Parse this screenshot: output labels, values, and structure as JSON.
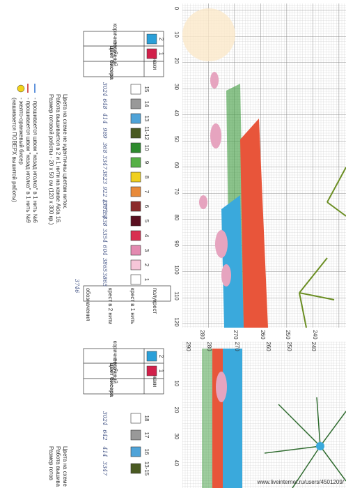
{
  "chart1": {
    "axis_top": [
      "0",
      "10",
      "20",
      "30",
      "40",
      "50",
      "60",
      "70",
      "80",
      "90",
      "100",
      "110",
      "120"
    ],
    "axis_side": [
      "280",
      "270",
      "260",
      "250",
      "240"
    ]
  },
  "chart2": {
    "axis_top": [
      "10",
      "20",
      "30",
      "40"
    ],
    "axis_side": [
      "290",
      "280",
      "270",
      "260",
      "250",
      "240"
    ]
  },
  "legend1": {
    "bead_title": "цвет бисера",
    "sign_header": "знаки",
    "beads": [
      {
        "num": "1",
        "name": "песочный"
      },
      {
        "num": "2",
        "name": "коричневый"
      }
    ],
    "threads": [
      {
        "num": "15",
        "code": "3024"
      },
      {
        "num": "14",
        "code": "648"
      },
      {
        "num": "13",
        "code": "414"
      },
      {
        "num": "11-12",
        "code": "989"
      },
      {
        "num": "10",
        "code": "368"
      },
      {
        "num": "9",
        "code": "3347"
      },
      {
        "num": "8",
        "code": "3823"
      },
      {
        "num": "7",
        "code": "922"
      },
      {
        "num": "6",
        "code": "3773"
      },
      {
        "num": "5",
        "code": "838"
      },
      {
        "num": "4",
        "code": "3354"
      },
      {
        "num": "3",
        "code": "604"
      },
      {
        "num": "2",
        "code": "3865"
      },
      {
        "num": "1",
        "code": "3865"
      }
    ],
    "note_code": "(3815)",
    "header_code": "3746",
    "headers": [
      "обозначения",
      "крест в 2 нити",
      "крест в 1 нить",
      "полукрест"
    ],
    "notes": [
      "Цвета на схеме не идентичны цветам ниток.",
      "Работа вышивается в 2 и 1 нити на канве Aida 16.",
      "Размер готовой работы - 20 х 50 см (120 х 300 кр.)"
    ],
    "stitch_notes": [
      "- прошивается швом \"назад иголка\" в 1 нить №6",
      "- прошивается швом \"назад иголка\" в 1 нить №9",
      "- желто-оранжевый бисер",
      "(нашивается ПОВЕРХ вышитой работы)"
    ]
  },
  "legend2": {
    "bead_title": "цвет бисера",
    "sign_header": "знаки",
    "beads": [
      {
        "num": "1",
        "name": "песочный"
      },
      {
        "num": "2",
        "name": "коричневый"
      }
    ],
    "threads": [
      {
        "num": "18",
        "code": "3024"
      },
      {
        "num": "17",
        "code": "642"
      },
      {
        "num": "16",
        "code": "414"
      },
      {
        "num": "13-15",
        "code": "3347"
      }
    ],
    "notes": [
      "Цвета на схеме",
      "Работа вышива",
      "Размер готов"
    ]
  },
  "watermark": "www.liveinternet.ru/users/4501209/"
}
